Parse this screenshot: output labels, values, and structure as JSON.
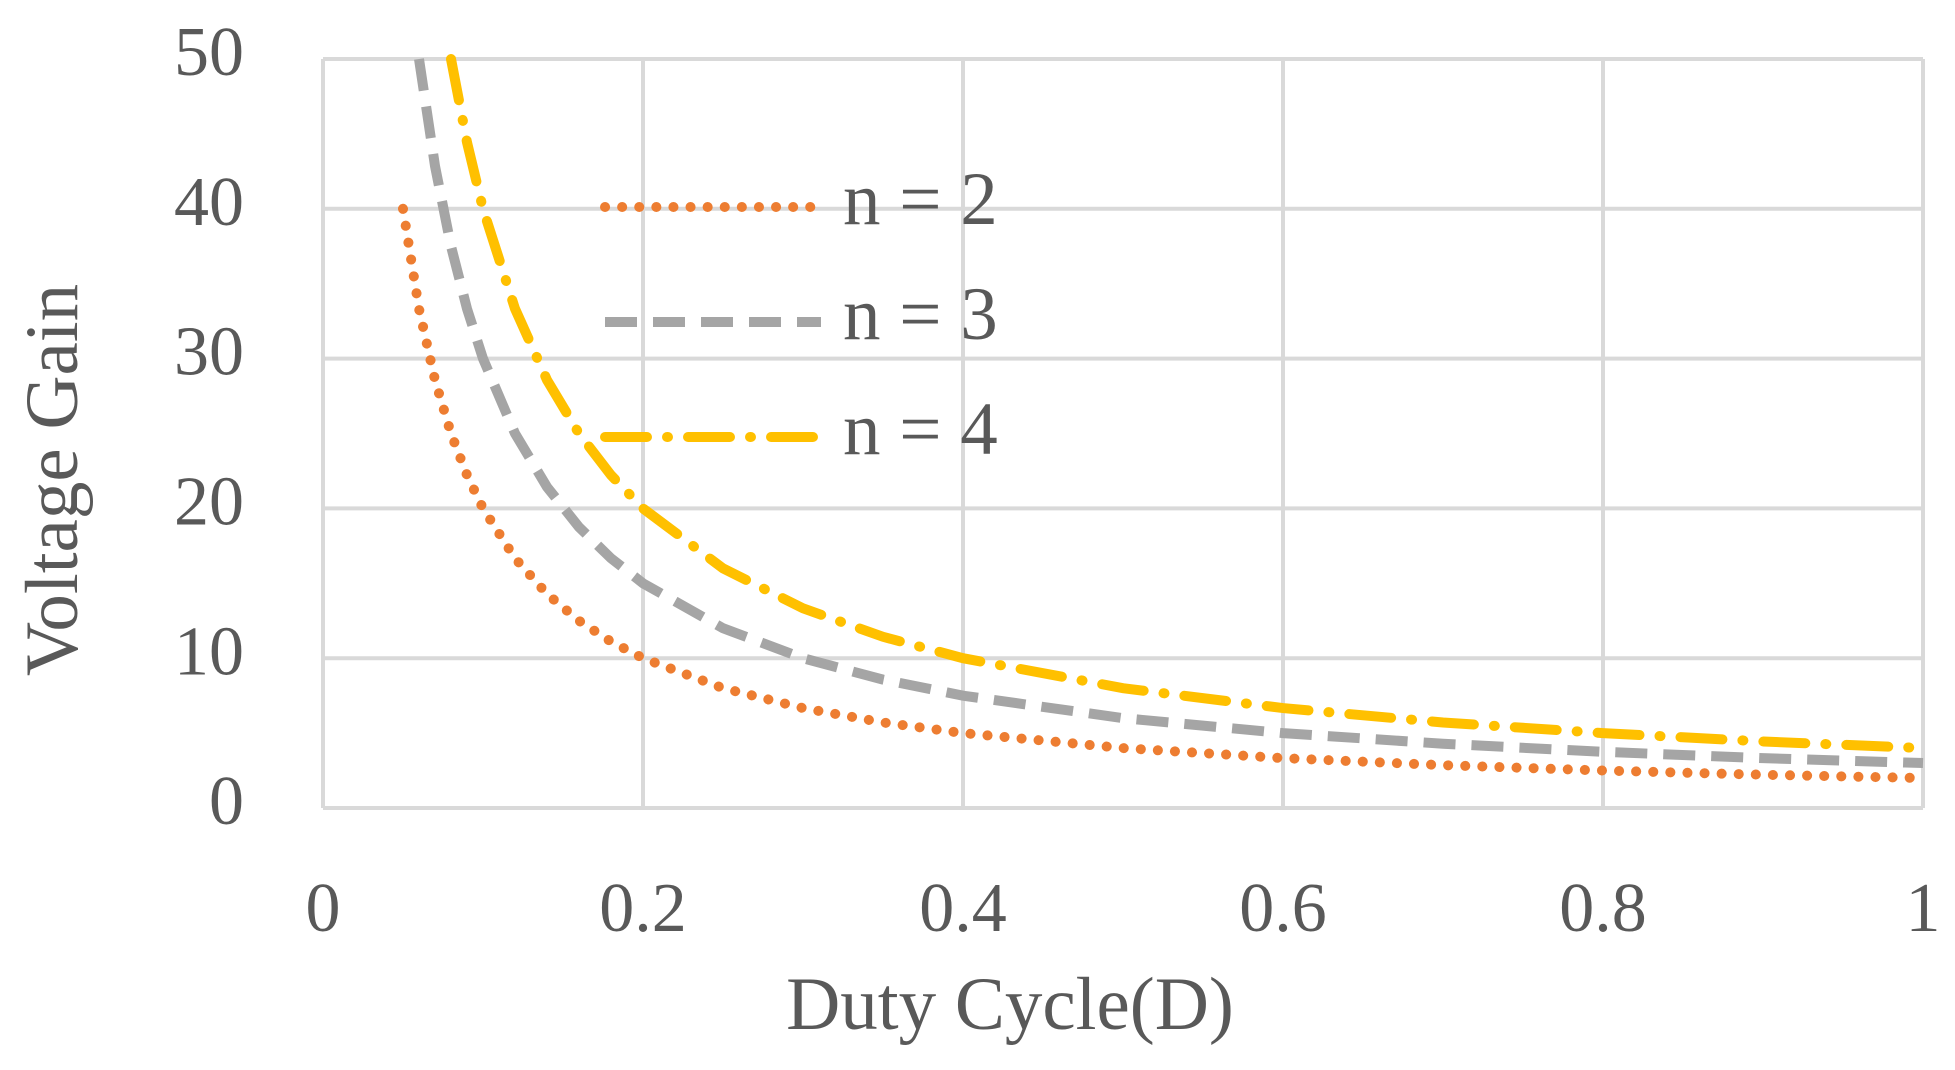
{
  "chart_data": {
    "type": "line",
    "x_label": "Duty Cycle(D)",
    "y_label": "Voltage Gain",
    "x": [
      0.05,
      0.06,
      0.07,
      0.08,
      0.09,
      0.1,
      0.12,
      0.14,
      0.16,
      0.18,
      0.2,
      0.25,
      0.3,
      0.35,
      0.4,
      0.5,
      0.6,
      0.7,
      0.8,
      0.9,
      1
    ],
    "series": [
      {
        "name": "n = 2",
        "color": "#ed7d31",
        "dash": "dotted",
        "values": [
          40,
          33.33,
          28.57,
          25,
          22.22,
          20,
          16.67,
          14.29,
          12.5,
          11.11,
          10,
          8,
          6.67,
          5.71,
          5,
          4,
          3.33,
          2.86,
          2.5,
          2.22,
          2
        ]
      },
      {
        "name": "n = 3",
        "color": "#a5a5a5",
        "dash": "dashed",
        "values": [
          null,
          50,
          42.86,
          37.5,
          33.33,
          30,
          25,
          21.43,
          18.75,
          16.67,
          15,
          12,
          10,
          8.57,
          7.5,
          6,
          5,
          4.29,
          3.75,
          3.33,
          3
        ]
      },
      {
        "name": "n = 4",
        "color": "#ffc000",
        "dash": "dash-dot",
        "values": [
          null,
          null,
          null,
          50,
          44.44,
          40,
          33.33,
          28.57,
          25,
          22.22,
          20,
          16,
          13.33,
          11.43,
          10,
          8,
          6.67,
          5.71,
          5,
          4.44,
          4
        ]
      }
    ],
    "xlim": [
      0,
      1
    ],
    "xticks": [
      0,
      0.2,
      0.4,
      0.6,
      0.8,
      1
    ],
    "ylim": [
      0,
      50
    ],
    "yticks": [
      0,
      10,
      20,
      30,
      40,
      50
    ],
    "grid": true
  }
}
